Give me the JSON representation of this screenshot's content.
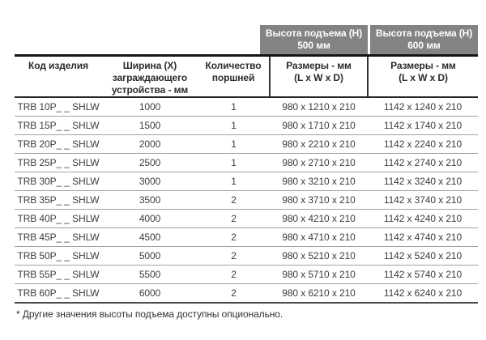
{
  "colors": {
    "band_background": "#838383",
    "band_text": "#ffffff",
    "heavy_rule": "#141414",
    "row_rule": "#a3a3a3",
    "text": "#3c3c3c"
  },
  "lift_headers": [
    {
      "label": "Высота подъема (H)\n500 мм"
    },
    {
      "label": "Высота подъема (H)\n600 мм"
    }
  ],
  "table": {
    "columns": [
      {
        "label": "Код изделия"
      },
      {
        "label": "Ширина (X)\nзаграждающего\nустройства - мм"
      },
      {
        "label": "Количество\nпоршней"
      },
      {
        "label": "Размеры - мм\n(L x W x D)"
      },
      {
        "label": "Размеры - мм\n(L x W x D)"
      }
    ],
    "rows": [
      [
        "TRB 10P_ _ SHLW",
        "1000",
        "1",
        "980 x 1210 x 210",
        "1142 x 1240 x 210"
      ],
      [
        "TRB 15P_ _ SHLW",
        "1500",
        "1",
        "980 x 1710 x 210",
        "1142 x 1740 x 210"
      ],
      [
        "TRB 20P_ _ SHLW",
        "2000",
        "1",
        "980 x 2210 x 210",
        "1142 x 2240 x 210"
      ],
      [
        "TRB 25P_ _ SHLW",
        "2500",
        "1",
        "980 x 2710 x 210",
        "1142 x 2740 x 210"
      ],
      [
        "TRB 30P_ _ SHLW",
        "3000",
        "1",
        "980 x 3210 x 210",
        "1142 x 3240 x 210"
      ],
      [
        "TRB 35P_ _ SHLW",
        "3500",
        "2",
        "980 x 3710 x 210",
        "1142 x 3740 x 210"
      ],
      [
        "TRB 40P_ _ SHLW",
        "4000",
        "2",
        "980 x 4210 x 210",
        "1142 x 4240 x 210"
      ],
      [
        "TRB 45P_ _ SHLW",
        "4500",
        "2",
        "980 x 4710 x 210",
        "1142 x 4740 x 210"
      ],
      [
        "TRB 50P_ _ SHLW",
        "5000",
        "2",
        "980 x 5210 x 210",
        "1142 x 5240 x 210"
      ],
      [
        "TRB 55P_ _ SHLW",
        "5500",
        "2",
        "980 x 5710 x 210",
        "1142 x 5740 x 210"
      ],
      [
        "TRB 60P_ _ SHLW",
        "6000",
        "2",
        "980 x 6210 x 210",
        "1142 x 6240 x 210"
      ]
    ]
  },
  "footnote": "* Другие значения высоты подъема доступны опционально."
}
